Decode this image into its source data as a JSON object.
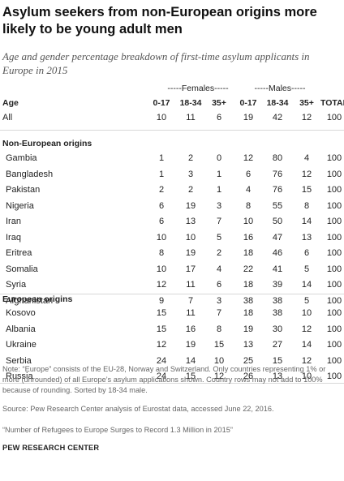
{
  "title": "Asylum seekers from non-European origins more likely to be young adult men",
  "subtitle": "Age and gender percentage breakdown of first-time asylum applicants in Europe in 2015",
  "group_headers": {
    "females": "-----Females-----",
    "males": "-----Males-----"
  },
  "columns": [
    "Age",
    "0-17",
    "18-34",
    "35+",
    "0-17",
    "18-34",
    "35+",
    "TOTAL"
  ],
  "all_row": {
    "name": "All",
    "values": [
      "10",
      "11",
      "6",
      "19",
      "42",
      "12",
      "100"
    ]
  },
  "sections": [
    {
      "label": "Non-European origins",
      "rows": [
        {
          "name": "Gambia",
          "values": [
            "1",
            "2",
            "0",
            "12",
            "80",
            "4",
            "100"
          ]
        },
        {
          "name": "Bangladesh",
          "values": [
            "1",
            "3",
            "1",
            "6",
            "76",
            "12",
            "100"
          ]
        },
        {
          "name": "Pakistan",
          "values": [
            "2",
            "2",
            "1",
            "4",
            "76",
            "15",
            "100"
          ]
        },
        {
          "name": "Nigeria",
          "values": [
            "6",
            "19",
            "3",
            "8",
            "55",
            "8",
            "100"
          ]
        },
        {
          "name": "Iran",
          "values": [
            "6",
            "13",
            "7",
            "10",
            "50",
            "14",
            "100"
          ]
        },
        {
          "name": "Iraq",
          "values": [
            "10",
            "10",
            "5",
            "16",
            "47",
            "13",
            "100"
          ]
        },
        {
          "name": "Eritrea",
          "values": [
            "8",
            "19",
            "2",
            "18",
            "46",
            "6",
            "100"
          ]
        },
        {
          "name": "Somalia",
          "values": [
            "10",
            "17",
            "4",
            "22",
            "41",
            "5",
            "100"
          ]
        },
        {
          "name": "Syria",
          "values": [
            "12",
            "11",
            "6",
            "18",
            "39",
            "14",
            "100"
          ]
        },
        {
          "name": "Afghanistan",
          "values": [
            "9",
            "7",
            "3",
            "38",
            "38",
            "5",
            "100"
          ]
        }
      ]
    },
    {
      "label": "European origins",
      "rows": [
        {
          "name": "Kosovo",
          "values": [
            "15",
            "11",
            "7",
            "18",
            "38",
            "10",
            "100"
          ]
        },
        {
          "name": "Albania",
          "values": [
            "15",
            "16",
            "8",
            "19",
            "30",
            "12",
            "100"
          ]
        },
        {
          "name": "Ukraine",
          "values": [
            "12",
            "19",
            "15",
            "13",
            "27",
            "14",
            "100"
          ]
        },
        {
          "name": "Serbia",
          "values": [
            "24",
            "14",
            "10",
            "25",
            "15",
            "12",
            "100"
          ]
        },
        {
          "name": "Russia",
          "values": [
            "24",
            "15",
            "12",
            "26",
            "13",
            "10",
            "100"
          ]
        }
      ]
    }
  ],
  "note": "Note: “Europe” consists of the EU-28, Norway and Switzerland. Only countries representing 1% or more (unrounded) of all Europe’s asylum applications shown. Country rows may not add to 100% because of rounding. Sorted by 18-34 male.",
  "source": "Source: Pew Research Center analysis of Eurostat data, accessed June 22, 2016.",
  "report": "“Number of Refugees to Europe Surges to Record 1.3 Million in 2015”",
  "footer": "PEW RESEARCH CENTER"
}
